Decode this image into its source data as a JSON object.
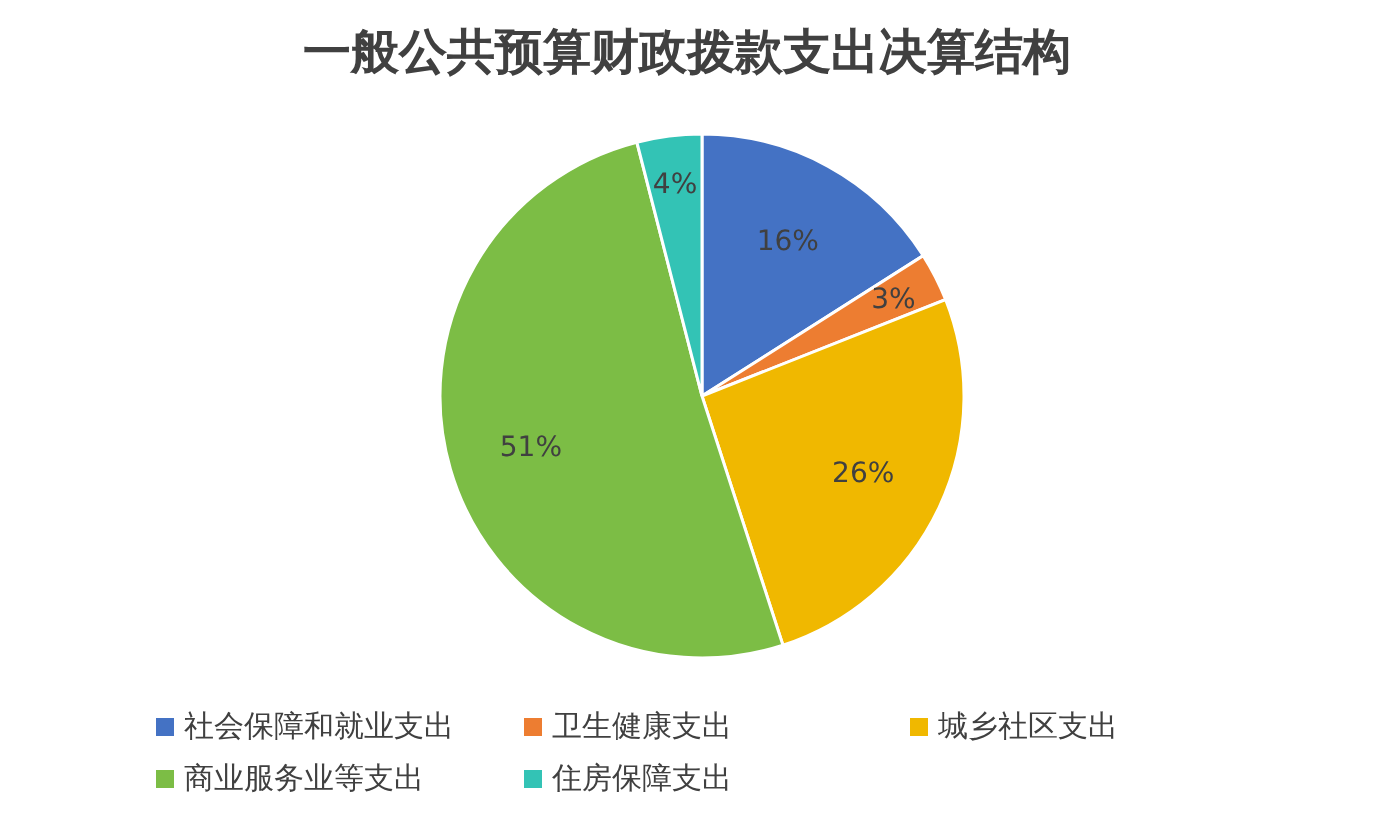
{
  "chart_data": {
    "type": "pie",
    "title": "一般公共预算财政拨款支出决算结构",
    "categories": [
      "社会保障和就业支出",
      "卫生健康支出",
      "城乡社区支出",
      "商业服务业等支出",
      "住房保障支出"
    ],
    "values": [
      16,
      3,
      26,
      51,
      4
    ],
    "colors": [
      "#4472c4",
      "#ed7d31",
      "#f0b800",
      "#7cbd45",
      "#33c3b5"
    ],
    "value_labels": [
      "16%",
      "3%",
      "26%",
      "51%",
      "4%"
    ],
    "legend": "bottom"
  }
}
